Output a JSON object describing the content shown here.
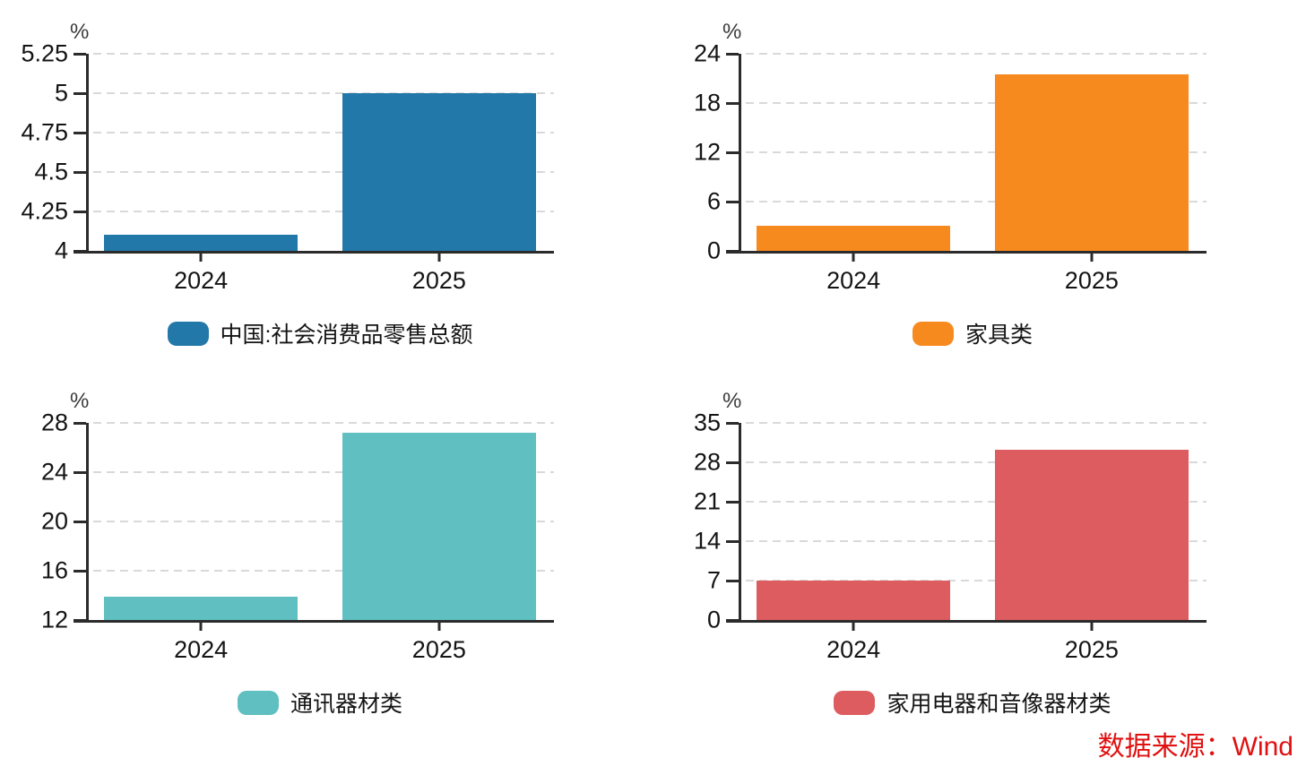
{
  "chart_data": [
    {
      "type": "bar",
      "slug": "china-total-retail",
      "unit": "%",
      "legend": "中国:社会消费品零售总额",
      "color": "#2278A8",
      "categories": [
        "2024",
        "2025"
      ],
      "values": [
        4.1,
        5
      ],
      "ylim": [
        4,
        5.25
      ],
      "yticks": [
        4,
        4.25,
        4.5,
        4.75,
        5,
        5.25
      ],
      "grid": true,
      "legend_position": "bottom",
      "title": "",
      "xlabel": "",
      "ylabel": "%"
    },
    {
      "type": "bar",
      "slug": "furniture",
      "unit": "%",
      "legend": "家具类",
      "color": "#F68A1E",
      "categories": [
        "2024",
        "2025"
      ],
      "values": [
        3.1,
        21.5
      ],
      "ylim": [
        0,
        24
      ],
      "yticks": [
        0,
        6,
        12,
        18,
        24
      ],
      "grid": true,
      "legend_position": "bottom",
      "title": "",
      "xlabel": "",
      "ylabel": "%"
    },
    {
      "type": "bar",
      "slug": "communication-equipment",
      "unit": "%",
      "legend": "通讯器材类",
      "color": "#5FBFC1",
      "categories": [
        "2024",
        "2025"
      ],
      "values": [
        13.9,
        27.2
      ],
      "ylim": [
        12,
        28
      ],
      "yticks": [
        12,
        16,
        20,
        24,
        28
      ],
      "grid": true,
      "legend_position": "bottom",
      "title": "",
      "xlabel": "",
      "ylabel": "%"
    },
    {
      "type": "bar",
      "slug": "home-appliances-av",
      "unit": "%",
      "legend": "家用电器和音像器材类",
      "color": "#DD5C5F",
      "categories": [
        "2024",
        "2025"
      ],
      "values": [
        7,
        30.2
      ],
      "ylim": [
        0,
        35
      ],
      "yticks": [
        0,
        7,
        14,
        21,
        28,
        35
      ],
      "grid": true,
      "legend_position": "bottom",
      "title": "",
      "xlabel": "",
      "ylabel": "%"
    }
  ],
  "footer": {
    "source_label": "数据来源：Wind",
    "color": "#E01111"
  },
  "palette": {
    "axis": "#2b2b2b",
    "gridline": "#d9d9d9",
    "tick_text": "#141414"
  }
}
